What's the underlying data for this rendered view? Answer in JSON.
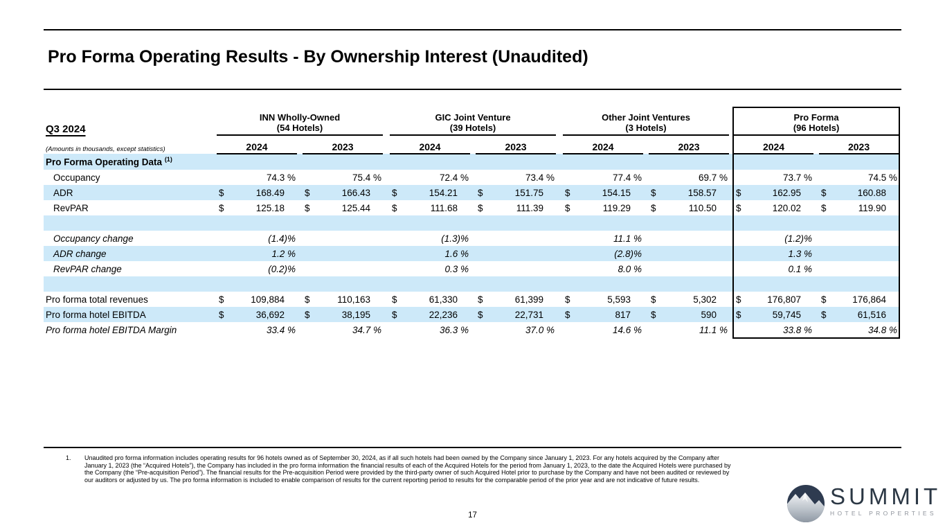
{
  "page": {
    "title": "Pro Forma Operating Results - By Ownership Interest (Unaudited)",
    "page_number": "17"
  },
  "table": {
    "period_label": "Q3 2024",
    "amounts_note": "(Amounts in thousands, except statistics)",
    "currency": "$",
    "groups": [
      {
        "name": "INN Wholly-Owned",
        "hotels": "(54 Hotels)"
      },
      {
        "name": "GIC Joint Venture",
        "hotels": "(39 Hotels)"
      },
      {
        "name": "Other Joint Ventures",
        "hotels": "(3 Hotels)"
      },
      {
        "name": "Pro Forma",
        "hotels": "(96 Hotels)"
      }
    ],
    "year_headers": [
      "2024",
      "2023"
    ],
    "rows": [
      {
        "label": "Pro Forma Operating Data",
        "footnote_ref": "(1)",
        "section": true
      },
      {
        "label": "Occupancy",
        "indent": true,
        "type": "pct",
        "values": [
          "74.3 %",
          "75.4 %",
          "72.4 %",
          "73.4 %",
          "77.4 %",
          "69.7 %",
          "73.7 %",
          "74.5 %"
        ]
      },
      {
        "label": "ADR",
        "indent": true,
        "type": "usd",
        "values": [
          "168.49",
          "166.43",
          "154.21",
          "151.75",
          "154.15",
          "158.57",
          "162.95",
          "160.88"
        ]
      },
      {
        "label": "RevPAR",
        "indent": true,
        "type": "usd",
        "values": [
          "125.18",
          "125.44",
          "111.68",
          "111.39",
          "119.29",
          "110.50",
          "120.02",
          "119.90"
        ]
      },
      {
        "label": "",
        "type": "blank"
      },
      {
        "label": "Occupancy change",
        "indent": true,
        "italic": true,
        "type": "pct2024",
        "values": [
          "(1.4)%",
          "(1.3)%",
          "11.1 %",
          "(1.2)%"
        ]
      },
      {
        "label": "ADR change",
        "indent": true,
        "italic": true,
        "type": "pct2024",
        "values": [
          "1.2 %",
          "1.6 %",
          "(2.8)%",
          "1.3 %"
        ]
      },
      {
        "label": "RevPAR change",
        "indent": true,
        "italic": true,
        "type": "pct2024",
        "values": [
          "(0.2)%",
          "0.3 %",
          "8.0 %",
          "0.1 %"
        ]
      },
      {
        "label": "",
        "type": "blank"
      },
      {
        "label": "Pro forma total revenues",
        "type": "usd",
        "values": [
          "109,884",
          "110,163",
          "61,330",
          "61,399",
          "5,593",
          "5,302",
          "176,807",
          "176,864"
        ]
      },
      {
        "label": "Pro forma hotel EBITDA",
        "type": "usd",
        "values": [
          "36,692",
          "38,195",
          "22,236",
          "22,731",
          "817",
          "590",
          "59,745",
          "61,516"
        ]
      },
      {
        "label": "Pro forma hotel EBITDA Margin",
        "italic": true,
        "type": "pct",
        "values": [
          "33.4 %",
          "34.7 %",
          "36.3 %",
          "37.0 %",
          "14.6 %",
          "11.1 %",
          "33.8 %",
          "34.8 %"
        ]
      }
    ]
  },
  "footnote": {
    "number": "1.",
    "text": "Unaudited pro forma information includes operating results for 96 hotels owned as of September 30, 2024, as if all such hotels had been owned by the Company since January 1, 2023. For any hotels acquired by the Company after January 1, 2023 (the “Acquired Hotels”), the Company has included in the pro forma information the financial results of each of the Acquired Hotels for the period from January 1, 2023, to the date the Acquired Hotels were purchased by the Company (the “Pre-acquisition Period”). The financial results for the Pre-acquisition Period were provided by the third-party owner of such Acquired Hotel prior to purchase by the Company and have not been audited or reviewed by our auditors or adjusted by us. The pro forma information is included to enable comparison of results for the current reporting period to results for the comparable period of the prior year and are not indicative of future results."
  },
  "logo": {
    "name": "SUMMIT",
    "subtitle": "HOTEL PROPERTIES"
  },
  "colors": {
    "stripe_blue": "#CDE9F9",
    "logo_navy": "#2e3b50",
    "logo_gray": "#8e939b"
  }
}
